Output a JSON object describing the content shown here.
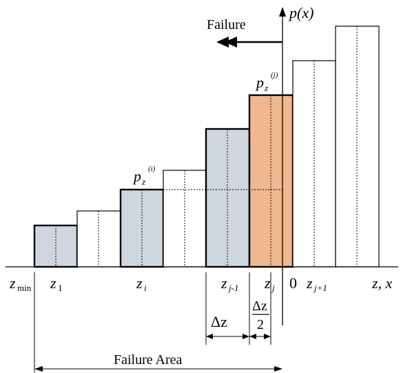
{
  "colors": {
    "shaded_fill": "#cfd6df",
    "highlight_fill": "#f0b890",
    "stroke": "#000000",
    "background": "#ffffff"
  },
  "diagram": {
    "failure_label": "Failure",
    "failure_arrow_icon": "double-left-arrow-icon",
    "y_axis_label": "p(x)",
    "x_axis_label": "z, x",
    "z_min_label": "z",
    "z_min_sub": "min",
    "pz_j_label": "p",
    "pz_j_sub": "z",
    "pz_j_sup": "(j)",
    "pz_i_label": "p",
    "pz_i_sub": "z",
    "pz_i_sup": "(i)",
    "bottom_labels": [
      {
        "id": "z1",
        "text": "z",
        "sub": "1"
      },
      {
        "id": "zi",
        "text": "z",
        "sub": "i"
      },
      {
        "id": "zjm1",
        "text": "z",
        "sub": "j-1"
      },
      {
        "id": "zj",
        "text": "z",
        "sub": "j"
      },
      {
        "id": "zero",
        "text": "0",
        "sub": ""
      },
      {
        "id": "zjp1",
        "text": "z",
        "sub": "j+1"
      }
    ],
    "delta_z_label": "Δz",
    "half_delta_num": "Δz",
    "half_delta_den": "2",
    "failure_area_label": "Failure Area"
  }
}
